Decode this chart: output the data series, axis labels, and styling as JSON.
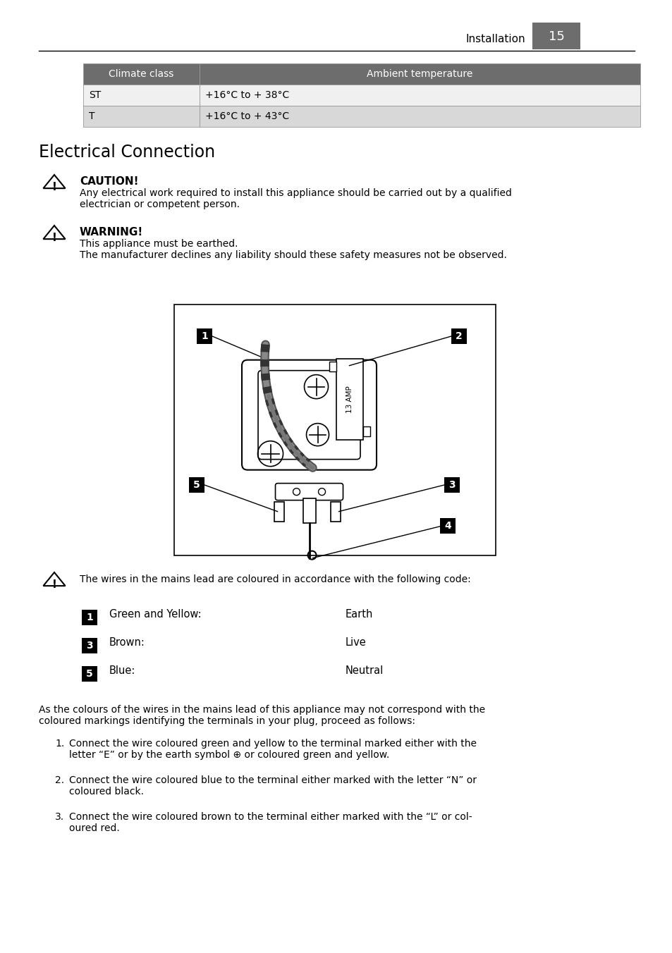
{
  "page_number": "15",
  "header_text": "Installation",
  "table_header": [
    "Climate class",
    "Ambient temperature"
  ],
  "table_rows": [
    [
      "ST",
      "+16°C to + 38°C"
    ],
    [
      "T",
      "+16°C to + 43°C"
    ]
  ],
  "section_title": "Electrical Connection",
  "caution_title": "CAUTION!",
  "caution_text": "Any electrical work required to install this appliance should be carried out by a qualified\nelectrician or competent person.",
  "warning_title": "WARNING!",
  "warning_text": "This appliance must be earthed.\nThe manufacturer declines any liability should these safety measures not be observed.",
  "warning2_text": "The wires in the mains lead are coloured in accordance with the following code:",
  "wire_entries": [
    {
      "num": "1",
      "label": "Green and Yellow:",
      "desc": "Earth"
    },
    {
      "num": "3",
      "label": "Brown:",
      "desc": "Live"
    },
    {
      "num": "5",
      "label": "Blue:",
      "desc": "Neutral"
    }
  ],
  "para1": "As the colours of the wires in the mains lead of this appliance may not correspond with the\ncoloured markings identifying the terminals in your plug, proceed as follows:",
  "list_items": [
    "Connect the wire coloured green and yellow to the terminal marked either with the\nletter “E” or by the earth symbol ⊕ or coloured green and yellow.",
    "Connect the wire coloured blue to the terminal either marked with the letter “N” or\ncoloured black.",
    "Connect the wire coloured brown to the terminal either marked with the “L” or col-\noured red."
  ],
  "bg_color": "#ffffff",
  "header_bg": "#6d6d6d",
  "row1_bg": "#f0f0f0",
  "row2_bg": "#d8d8d8",
  "table_border": "#aaaaaa"
}
